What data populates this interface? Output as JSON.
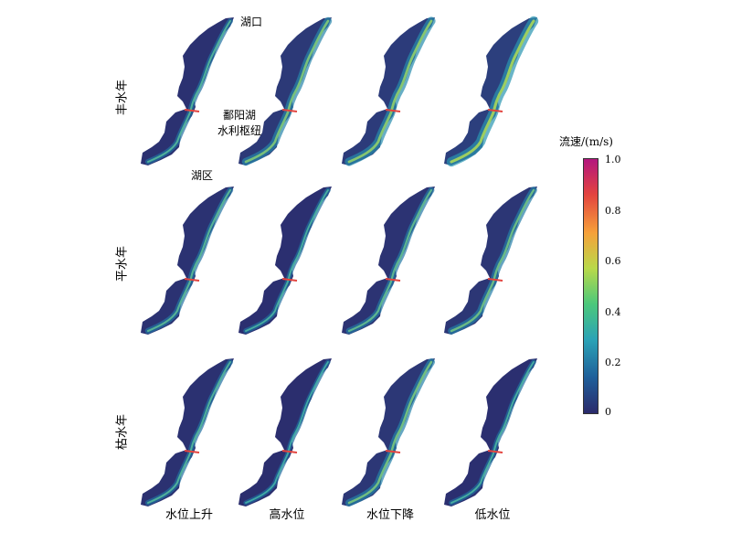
{
  "labels": {
    "row_high": "丰水年",
    "row_normal": "平水年",
    "row_dry": "枯水年",
    "col_rising": "水位上升",
    "col_high": "高水位",
    "col_falling": "水位下降",
    "col_low": "低水位",
    "annot_lake_mouth": "湖口",
    "annot_hub_1": "鄱阳湖",
    "annot_hub_2": "水利枢纽",
    "annot_lake_area": "湖区"
  },
  "colorbar": {
    "title": "流速/(m/s)",
    "ticks": [
      "1.0",
      "0.8",
      "0.6",
      "0.4",
      "0.2",
      "0"
    ],
    "stops": [
      "#2b2a6b",
      "#1f5f9a",
      "#2ba3b6",
      "#4cc87b",
      "#b9d94a",
      "#f6a13a",
      "#e3443f",
      "#b3167e"
    ]
  },
  "panel_intensity": [
    [
      0.25,
      0.55,
      0.65,
      0.8
    ],
    [
      0.3,
      0.2,
      0.35,
      0.45
    ],
    [
      0.25,
      0.15,
      0.5,
      0.2
    ]
  ]
}
